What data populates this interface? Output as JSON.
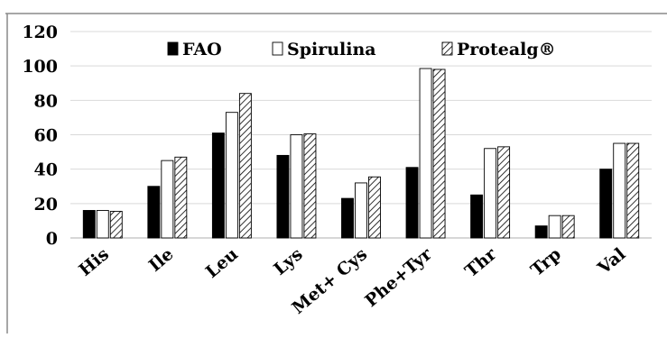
{
  "chart_data": {
    "type": "bar",
    "title": "",
    "xlabel": "",
    "ylabel": "",
    "ylim": [
      0,
      120
    ],
    "yticks": [
      0,
      20,
      40,
      60,
      80,
      100,
      120
    ],
    "grid": true,
    "legend_position": "top",
    "categories": [
      "His",
      "Ile",
      "Leu",
      "Lys",
      "Met+ Cys",
      "Phe+Tyr",
      "Thr",
      "Trp",
      "Val"
    ],
    "series": [
      {
        "name": "FAO",
        "fill": "solid",
        "color": "#000000",
        "values": [
          16,
          30,
          61,
          48,
          23,
          41,
          25,
          7,
          40
        ]
      },
      {
        "name": "Spirulina",
        "fill": "white",
        "color": "#ffffff",
        "values": [
          16,
          45,
          73,
          60,
          32,
          98.5,
          52,
          13,
          55
        ]
      },
      {
        "name": "Protealg®",
        "fill": "hatched",
        "color": "#000000",
        "values": [
          15.5,
          47,
          84,
          60.5,
          35.5,
          98,
          53,
          13,
          55
        ]
      }
    ]
  }
}
